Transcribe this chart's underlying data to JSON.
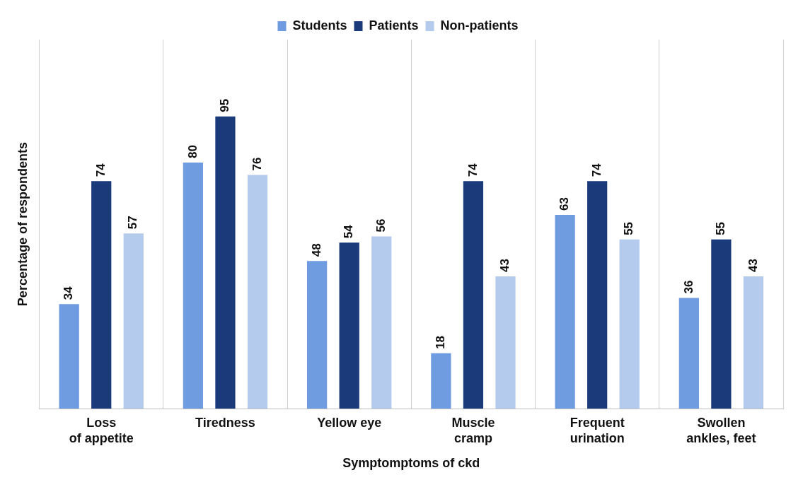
{
  "chart_data": {
    "type": "bar",
    "xlabel": "Symptomptoms of ckd",
    "ylabel": "Percentage of respondents",
    "categories": [
      "Loss of appetite",
      "Tiredness",
      "Yellow eye",
      "Muscle cramp",
      "Frequent urination",
      "Swollen ankles, feet"
    ],
    "series": [
      {
        "name": "Students",
        "color": "#6f9be0",
        "values": [
          34,
          80,
          48,
          18,
          63,
          36
        ]
      },
      {
        "name": "Patients",
        "color": "#1b3a7a",
        "values": [
          74,
          95,
          54,
          74,
          74,
          55
        ]
      },
      {
        "name": "Non-patients",
        "color": "#b4cbee",
        "values": [
          57,
          76,
          56,
          43,
          55,
          43
        ]
      }
    ],
    "data_labels": true,
    "grid": "x",
    "legend": "top"
  }
}
